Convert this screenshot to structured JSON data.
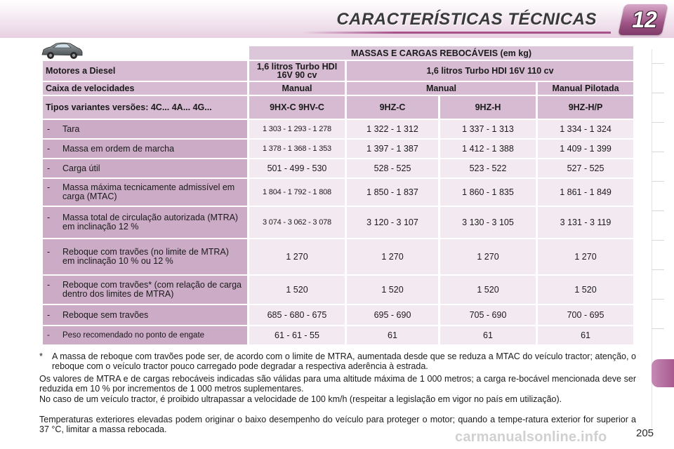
{
  "header": {
    "title": "CARACTERÍSTICAS TÉCNICAS",
    "chapter": "12"
  },
  "table": {
    "title": "MASSAS E CARGAS REBOCÁVEIS (em kg)",
    "motor_label": "Motores a Diesel",
    "engines": [
      "1,6 litros Turbo HDI 16V 90 cv",
      "1,6 litros Turbo HDI 16V 110 cv"
    ],
    "gearbox_label": "Caixa de velocidades",
    "gearboxes": [
      "Manual",
      "Manual",
      "Manual Pilotada"
    ],
    "variants_label": "Tipos variantes versões: 4C... 4A... 4G...",
    "variants": [
      "9HX-C 9HV-C",
      "9HZ-C",
      "9HZ-H",
      "9HZ-H/P"
    ],
    "rows": [
      {
        "label": "Tara",
        "values": [
          "1 303 - 1 293 - 1 278",
          "1 322 - 1 312",
          "1 337 - 1 313",
          "1 334 - 1 324"
        ]
      },
      {
        "label": "Massa em ordem de marcha",
        "values": [
          "1 378 - 1 368 - 1 353",
          "1 397 - 1 387",
          "1 412 - 1 388",
          "1 409 - 1 399"
        ]
      },
      {
        "label": "Carga útil",
        "values": [
          "501 - 499 - 530",
          "528 - 525",
          "523 - 522",
          "527 - 525"
        ]
      },
      {
        "label": "Massa máxima tecnicamente admissível em carga (MTAC)",
        "values": [
          "1 804 - 1 792 - 1 808",
          "1 850 - 1 837",
          "1 860 - 1 835",
          "1 861 - 1 849"
        ]
      },
      {
        "label": "Massa total de circulação autorizada (MTRA)",
        "note": "em inclinação 12 %",
        "values": [
          "3 074 - 3 062 - 3 078",
          "3 120 - 3 107",
          "3 130 - 3 105",
          "3 131 - 3 119"
        ]
      },
      {
        "label": "Reboque com travões (no limite de MTRA)",
        "note": "em inclinação 10 % ou 12 %",
        "values": [
          "1 270",
          "1 270",
          "1 270",
          "1 270"
        ]
      },
      {
        "label": "Reboque com travões* (com relação de carga dentro dos limites de MTRA)",
        "values": [
          "1 520",
          "1 520",
          "1 520",
          "1 520"
        ]
      },
      {
        "label": "Reboque sem travões",
        "values": [
          "685 - 680 - 675",
          "695 - 690",
          "705 - 690",
          "700 - 695"
        ]
      },
      {
        "label": "Peso recomendado no ponto de engate",
        "values": [
          "61 - 61 - 55",
          "61",
          "61",
          "61"
        ]
      }
    ]
  },
  "notes": {
    "footnote": "A massa de reboque com travões pode ser, de acordo com o limite de MTRA, aumentada desde que se reduza a MTAC do veículo tractor; atenção, o reboque com o veículo tractor pouco carregado pode degradar a respectiva aderência à estrada.",
    "footnote_marker": "*",
    "p1": "Os valores de MTRA e de cargas rebocáveis indicadas são válidas para uma altitude máxima de 1 000 metros; a carga re-bocável mencionada deve ser reduzida em 10 % por incrementos de 1 000 metros suplementares.",
    "p2": "No caso de um veículo tractor, é proibido ultrapassar a velocidade de 100 km/h (respeitar a legislação em vigor no país em utilização).",
    "p3": "Temperaturas exteriores elevadas podem originar o baixo desempenho do veículo para proteger o motor; quando a tempe-ratura exterior for superior a 37 °C, limitar a massa rebocada."
  },
  "page_number": "205",
  "watermark": "carmanualsonline.info",
  "colors": {
    "accent": "#a8528c",
    "label_column": "#cbabc5",
    "header_cells": "#d7bbd2",
    "value_cells": "#f3e9f0"
  },
  "icons": [
    "car-icon"
  ]
}
